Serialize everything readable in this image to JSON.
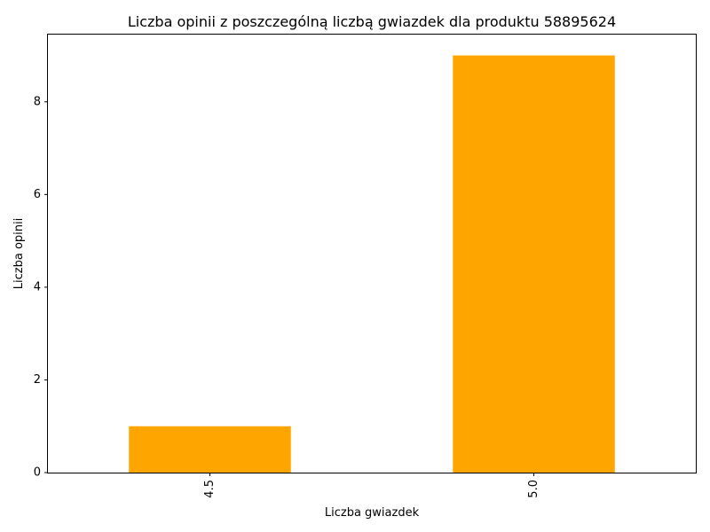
{
  "chart_data": {
    "type": "bar",
    "title": "Liczba opinii z poszczególną liczbą gwiazdek dla produktu 58895624",
    "xlabel": "Liczba gwiazdek",
    "ylabel": "Liczba opinii",
    "categories": [
      "4.5",
      "5.0"
    ],
    "values": [
      1,
      9
    ],
    "yticks": [
      0,
      2,
      4,
      6,
      8
    ],
    "ylim": [
      0,
      9.45
    ],
    "bar_color": "#ffa500",
    "grid": false,
    "legend": "none"
  }
}
